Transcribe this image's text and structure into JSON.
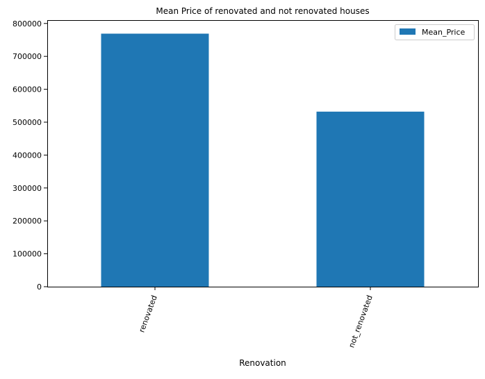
{
  "chart_data": {
    "type": "bar",
    "title": "Mean Price of renovated and not renovated houses",
    "xlabel": "Renovation",
    "ylabel": "",
    "categories": [
      "renovated",
      "not_renovated"
    ],
    "series": [
      {
        "name": "Mean_Price",
        "values": [
          769000,
          532000
        ],
        "color": "#1f77b4"
      }
    ],
    "ylim": [
      0,
      808000
    ],
    "yticks": [
      0,
      100000,
      200000,
      300000,
      400000,
      500000,
      600000,
      700000,
      800000
    ],
    "ytick_labels": [
      "0",
      "100000",
      "200000",
      "300000",
      "400000",
      "500000",
      "600000",
      "700000",
      "800000"
    ],
    "xtick_rotation_deg": 70,
    "grid": false,
    "legend": {
      "placement": "top-right"
    }
  }
}
